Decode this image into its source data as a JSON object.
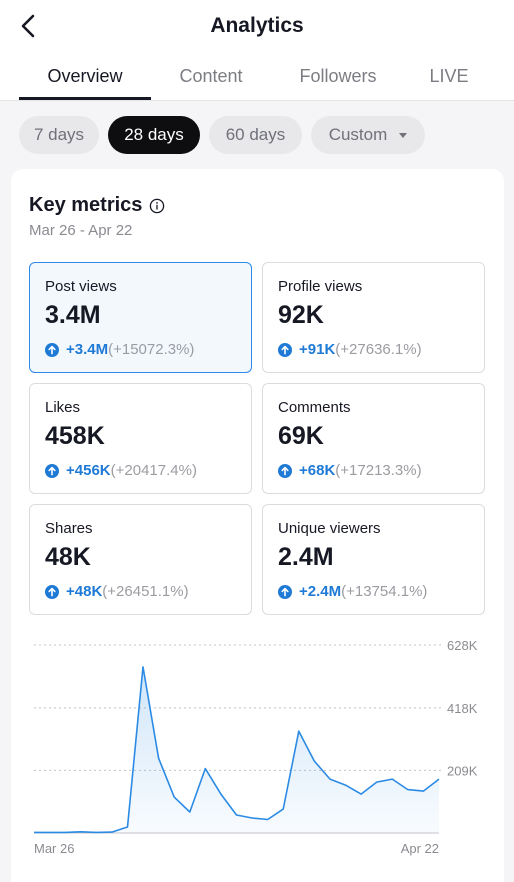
{
  "header": {
    "title": "Analytics",
    "tabs": [
      {
        "label": "Overview",
        "active": true
      },
      {
        "label": "Content",
        "active": false
      },
      {
        "label": "Followers",
        "active": false
      },
      {
        "label": "LIVE",
        "active": false
      }
    ]
  },
  "date_filters": [
    {
      "label": "7 days",
      "active": false
    },
    {
      "label": "28 days",
      "active": true
    },
    {
      "label": "60 days",
      "active": false
    },
    {
      "label": "Custom",
      "active": false
    }
  ],
  "key_metrics": {
    "title": "Key metrics",
    "range": "Mar 26 - Apr 22",
    "cards": [
      {
        "label": "Post views",
        "value": "3.4M",
        "delta": "+3.4M",
        "delta_pct": "(+15072.3%)",
        "selected": true
      },
      {
        "label": "Profile views",
        "value": "92K",
        "delta": "+91K",
        "delta_pct": "(+27636.1%)",
        "selected": false
      },
      {
        "label": "Likes",
        "value": "458K",
        "delta": "+456K",
        "delta_pct": "(+20417.4%)",
        "selected": false
      },
      {
        "label": "Comments",
        "value": "69K",
        "delta": "+68K",
        "delta_pct": "(+17213.3%)",
        "selected": false
      },
      {
        "label": "Shares",
        "value": "48K",
        "delta": "+48K",
        "delta_pct": "(+26451.1%)",
        "selected": false
      },
      {
        "label": "Unique viewers",
        "value": "2.4M",
        "delta": "+2.4M",
        "delta_pct": "(+13754.1%)",
        "selected": false
      }
    ]
  },
  "colors": {
    "accent_blue": "#1f7ad6",
    "line_blue": "#2b8be4",
    "selected_border": "#2d8ae6",
    "active_chip": "#0e0e10"
  },
  "chart_data": {
    "type": "area",
    "y_tick_labels": [
      "628K",
      "418K",
      "209K"
    ],
    "y_ticks": [
      628000,
      418000,
      209000
    ],
    "ylim": [
      0,
      628000
    ],
    "x_start_label": "Mar 26",
    "x_end_label": "Apr 22",
    "grid": true,
    "values": [
      2000,
      2000,
      2000,
      4000,
      2000,
      3000,
      20000,
      555000,
      250000,
      120000,
      70000,
      215000,
      130000,
      60000,
      50000,
      45000,
      80000,
      340000,
      240000,
      180000,
      160000,
      130000,
      170000,
      180000,
      145000,
      140000,
      180000
    ]
  }
}
